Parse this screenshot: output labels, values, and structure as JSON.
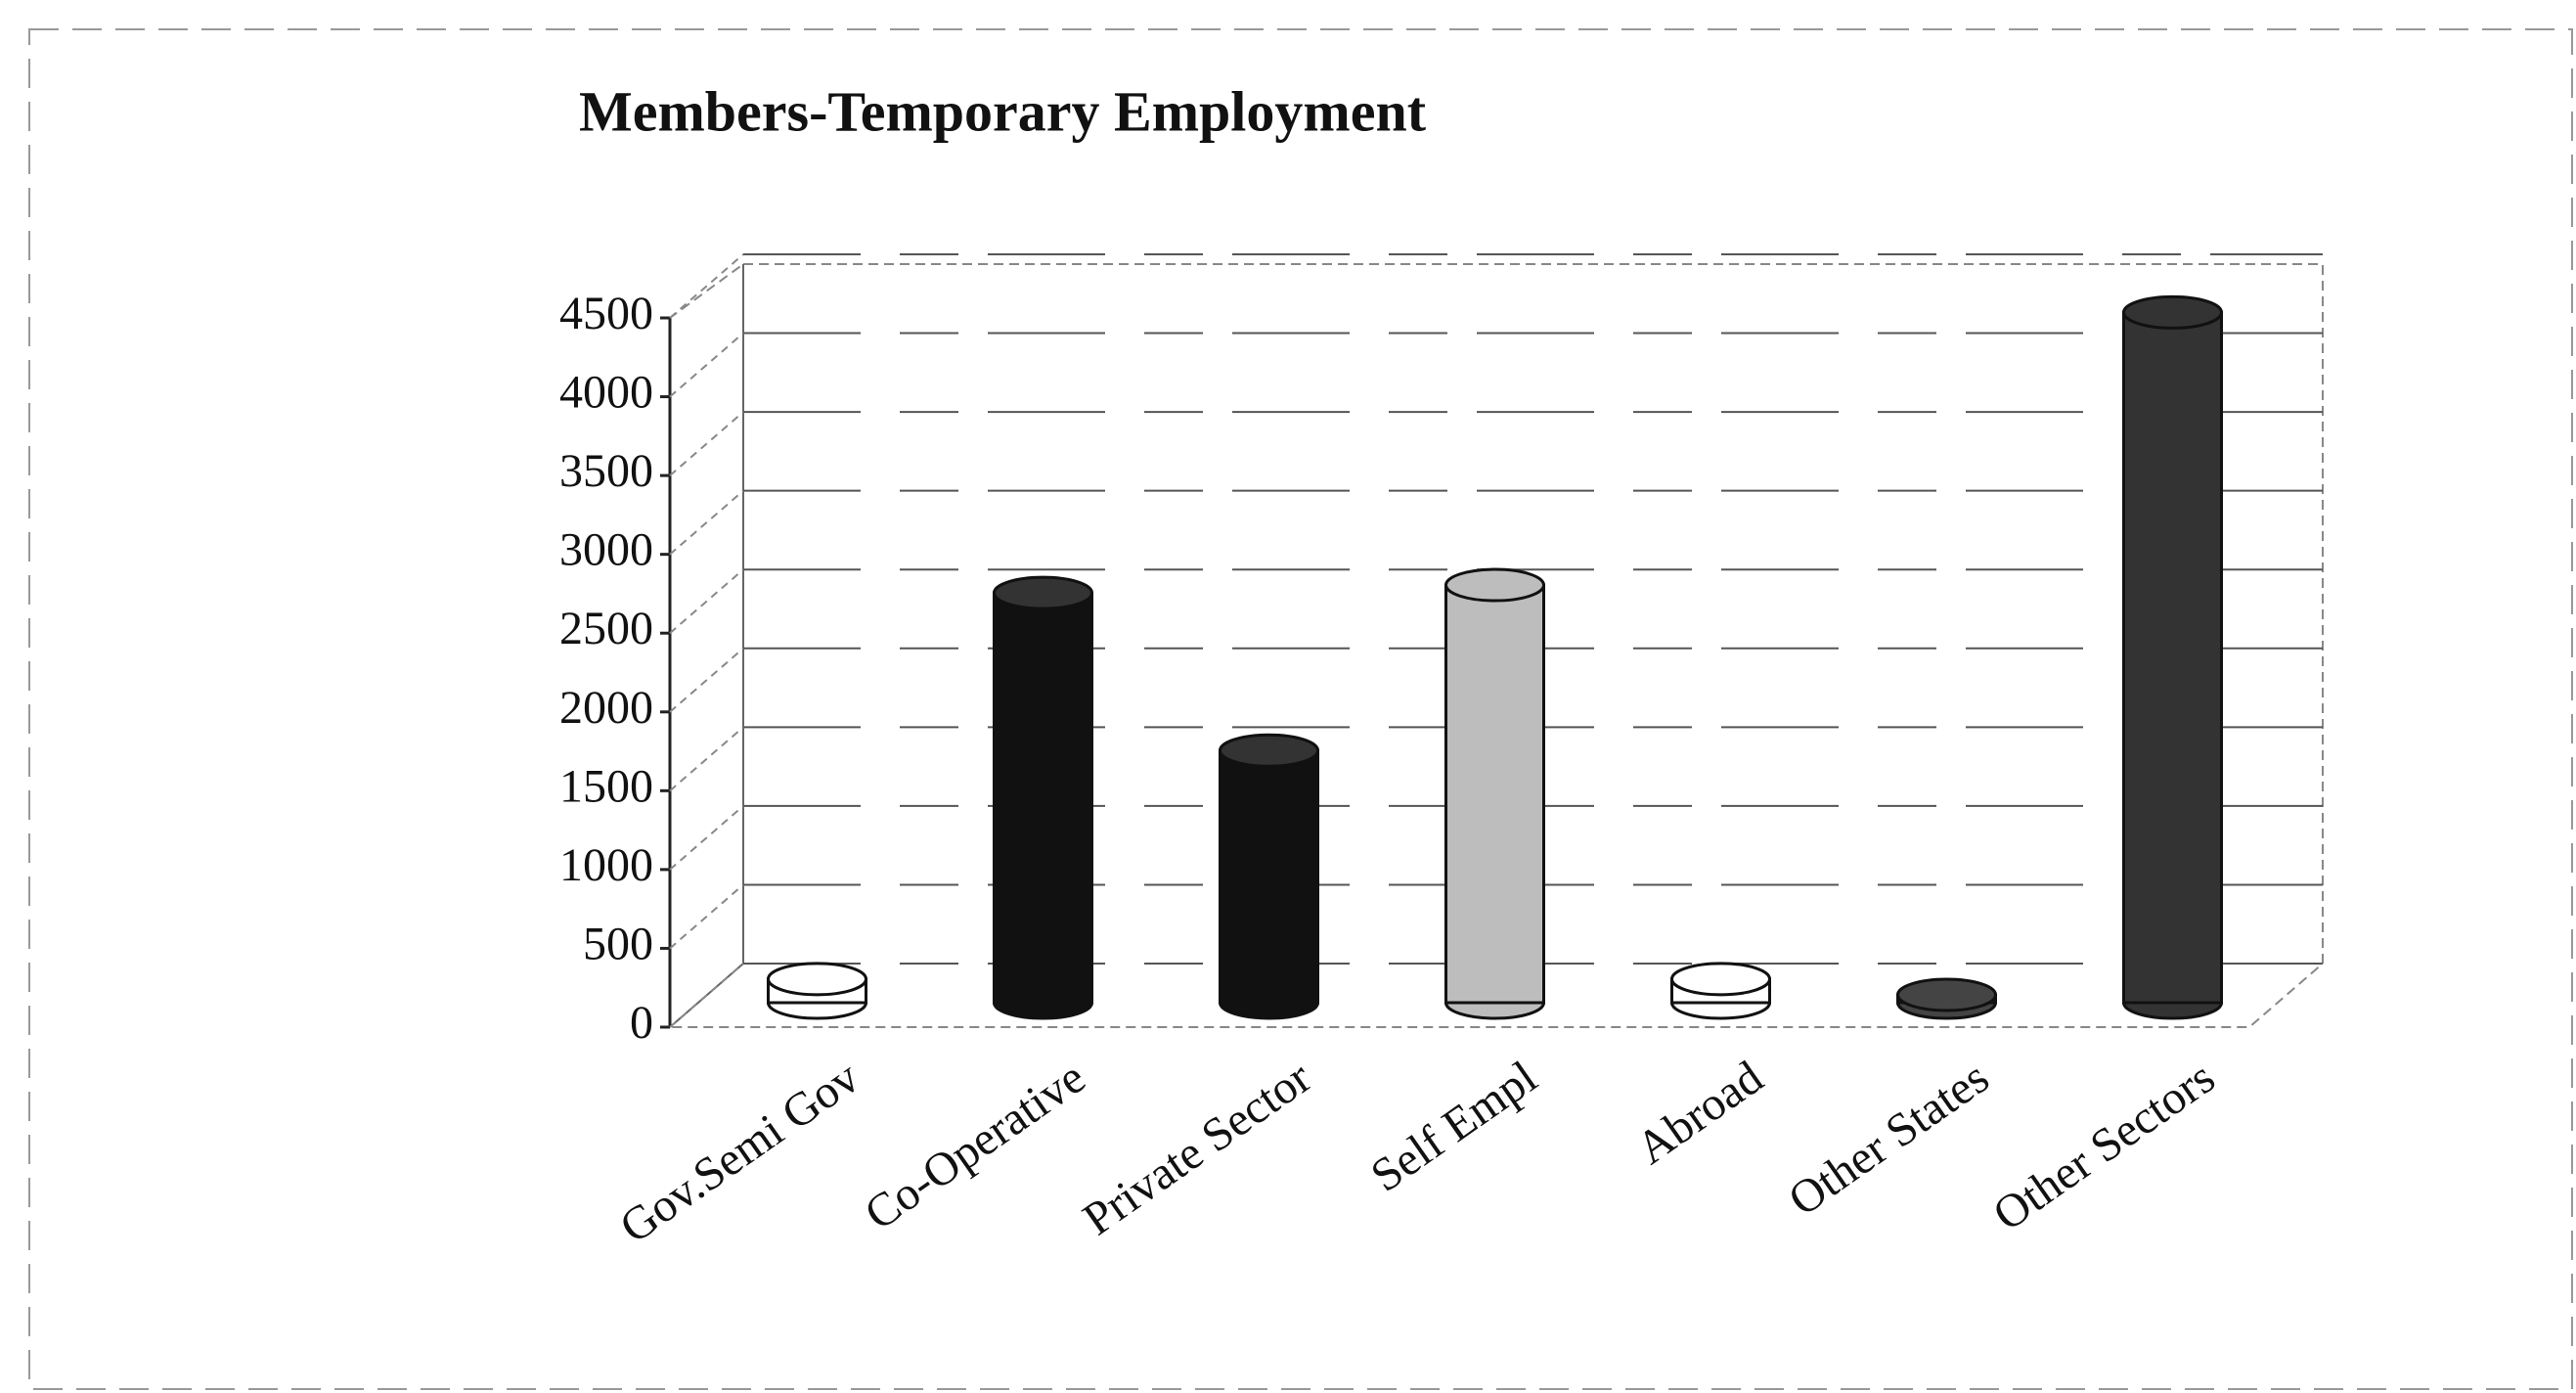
{
  "chart_data": {
    "type": "bar3d",
    "title": "Members-Temporary Employment",
    "categories": [
      "Gov.Semi Gov",
      "Co-Operative",
      "Private Sector",
      "Self Empl",
      "Abroad",
      "Other States",
      "Other Sectors"
    ],
    "values": [
      150,
      2600,
      1600,
      2650,
      150,
      50,
      4380
    ],
    "colors": [
      "#ffffff",
      "#111111",
      "#111111",
      "#bdbdbd",
      "#ffffff",
      "#444444",
      "#333333"
    ],
    "ylim": [
      0,
      4500
    ],
    "yticks": [
      0,
      500,
      1000,
      1500,
      2000,
      2500,
      3000,
      3500,
      4000,
      4500
    ],
    "grid": true
  }
}
